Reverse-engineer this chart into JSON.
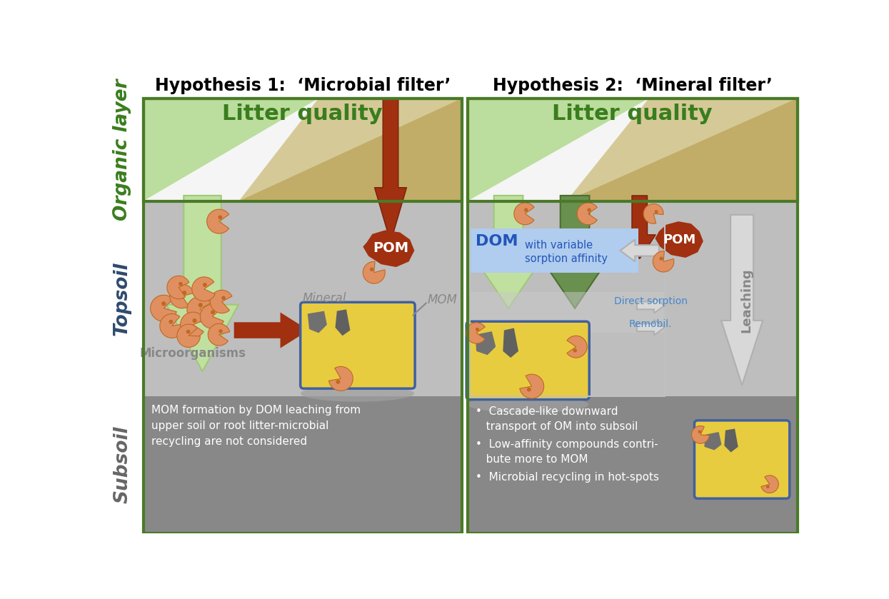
{
  "title1": "Hypothesis 1:  ‘Microbial filter’",
  "title2": "Hypothesis 2:  ‘Mineral filter’",
  "label_organic": "Organic layer",
  "label_topsoil": "Topsoil",
  "label_subsoil": "Subsoil",
  "litter_quality": "Litter quality",
  "color_organic_label": "#3a7d1e",
  "color_topsoil_label": "#2e4a6e",
  "color_subsoil_label": "#666666",
  "color_bg": "#ffffff",
  "color_panel_border": "#4a7a28",
  "color_topsoil_bg": "#bebebe",
  "color_subsoil_bg": "#888888",
  "color_org_white": "#f0f0f0",
  "color_green_triangle": "#8aba60",
  "color_brown_triangle": "#a07840",
  "color_green_arrow_light": "#b0d890",
  "color_green_arrow_dark": "#6a9050",
  "color_brown_arrow": "#a03010",
  "color_pacman": "#e09060",
  "color_pacman_edge": "#c06820",
  "color_mineral_box_fill": "#e8cc40",
  "color_mineral_border": "#4060a0",
  "color_mineral_dark": "#686868",
  "color_pom": "#a03010",
  "color_dom_box": "#b0ccee",
  "color_white_arrow": "#d8d8d8",
  "color_white_arrow_edge": "#b0b0b0",
  "text_mineral": "Mineral",
  "text_mom": "MOM",
  "text_microorganisms": "Microorganisms",
  "text_pom": "POM",
  "text_dom": "DOM",
  "text_dom_sub": "with variable\nsorption affinity",
  "text_direct_sorption": "Direct sorption",
  "text_remobil": "Remobil.",
  "text_leaching": "Leaching",
  "text_subsoil1": "MOM formation by DOM leaching from\nupper soil or root litter-microbial\nrecycling are not considered",
  "text_bullet1": "•  Cascade-like downward\n   transport of OM into subsoil",
  "text_bullet2": "•  Low-affinity compounds contri-\n   bute more to MOM",
  "text_bullet3": "•  Microbial recycling in hot-spots",
  "title_fontsize": 17,
  "label_fontsize": 19,
  "body_fontsize": 11
}
